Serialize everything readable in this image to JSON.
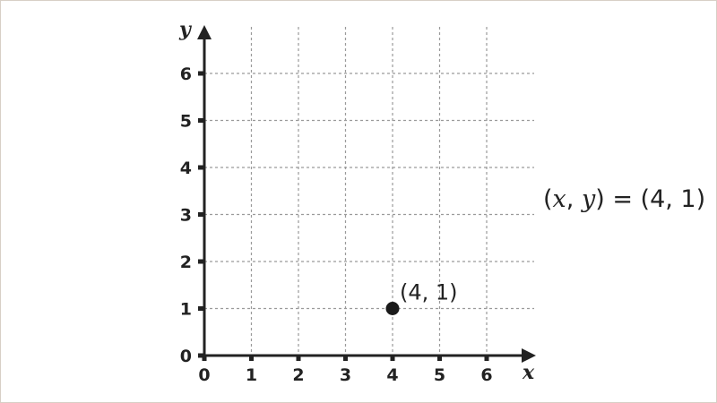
{
  "chart_data": {
    "type": "scatter",
    "xlabel": "x",
    "ylabel": "y",
    "xlim": [
      0,
      6
    ],
    "ylim": [
      0,
      6
    ],
    "x_ticks": [
      "0",
      "1",
      "2",
      "3",
      "4",
      "5",
      "6"
    ],
    "y_ticks": [
      "0",
      "1",
      "2",
      "3",
      "4",
      "5",
      "6"
    ],
    "grid": true,
    "points": [
      {
        "x": 4,
        "y": 1,
        "label": "(4, 1)"
      }
    ],
    "colors": {
      "axis": "#222222",
      "grid": "#9a9a9a",
      "point": "#1a1a1a"
    }
  },
  "equation": {
    "open": "(",
    "x": "x",
    "comma": ", ",
    "y": "y",
    "rest": ") = (4, 1)"
  }
}
